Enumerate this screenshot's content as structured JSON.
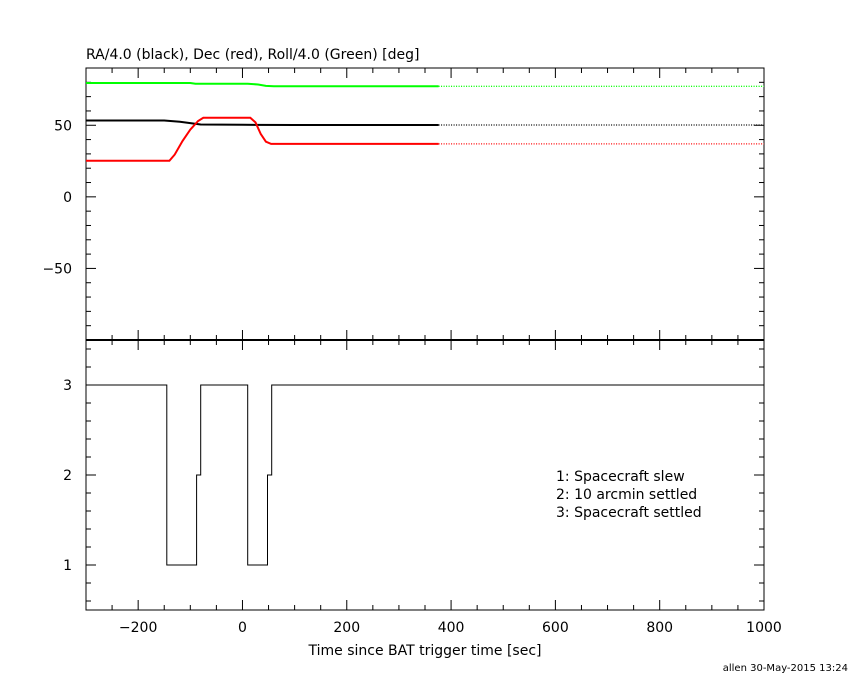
{
  "chart_data": [
    {
      "type": "line",
      "title": "RA/4.0 (black), Dec (red), Roll/4.0 (Green) [deg]",
      "xlabel": "",
      "ylabel": "",
      "xlim": [
        -300,
        1000
      ],
      "ylim": [
        -100,
        90
      ],
      "yticks": [
        -50,
        0,
        50
      ],
      "grid": false,
      "series": [
        {
          "name": "RA/4.0",
          "color": "#000000",
          "style": "solid",
          "x": [
            -300,
            -150,
            -120,
            -100,
            -80,
            0,
            100,
            200,
            376
          ],
          "y": [
            53.3,
            53.3,
            52.5,
            51.5,
            50.5,
            50.3,
            50.2,
            50.2,
            50.2
          ]
        },
        {
          "name": "RA/4.0",
          "color": "#000000",
          "style": "dotted",
          "x": [
            376,
            1000
          ],
          "y": [
            50.2,
            50.2
          ]
        },
        {
          "name": "Dec",
          "color": "#ff0000",
          "style": "solid",
          "x": [
            -300,
            -140,
            -130,
            -115,
            -100,
            -85,
            -75,
            15,
            25,
            35,
            45,
            55,
            70,
            376
          ],
          "y": [
            25.2,
            25.2,
            29.5,
            39,
            47,
            53,
            55.2,
            55.2,
            52,
            44,
            38.5,
            37,
            37,
            37
          ]
        },
        {
          "name": "Dec",
          "color": "#ff0000",
          "style": "dotted",
          "x": [
            376,
            1000
          ],
          "y": [
            37,
            37
          ]
        },
        {
          "name": "Roll/4.0",
          "color": "#00ff00",
          "style": "solid",
          "x": [
            -300,
            -100,
            -90,
            10,
            30,
            45,
            60,
            376
          ],
          "y": [
            79.5,
            79.5,
            79,
            79,
            78.5,
            77.5,
            77.2,
            77.2
          ]
        },
        {
          "name": "Roll/4.0",
          "color": "#00ff00",
          "style": "dotted",
          "x": [
            376,
            1000
          ],
          "y": [
            77.2,
            77.2
          ]
        }
      ]
    },
    {
      "type": "line",
      "title": "",
      "xlabel": "Time since BAT trigger time [sec]",
      "ylabel": "",
      "xlim": [
        -300,
        1000
      ],
      "ylim": [
        0.5,
        3.5
      ],
      "xticks": [
        -200,
        0,
        200,
        400,
        600,
        800,
        1000
      ],
      "yticks": [
        1,
        2,
        3
      ],
      "grid": false,
      "series": [
        {
          "name": "",
          "color": "#000000",
          "style": "step",
          "x": [
            -300,
            -145,
            -145,
            -88,
            -88,
            -80,
            -80,
            10,
            10,
            48,
            48,
            56,
            56,
            1000
          ],
          "y": [
            3,
            3,
            1,
            1,
            2,
            2,
            3,
            3,
            1,
            1,
            2,
            2,
            3,
            3
          ]
        }
      ],
      "legend_text": [
        "1: Spacecraft slew",
        "2: 10 arcmin settled",
        "3: Spacecraft settled"
      ],
      "legend_position": "right"
    }
  ],
  "footer": {
    "stamp": "allen 30-May-2015 13:24"
  }
}
